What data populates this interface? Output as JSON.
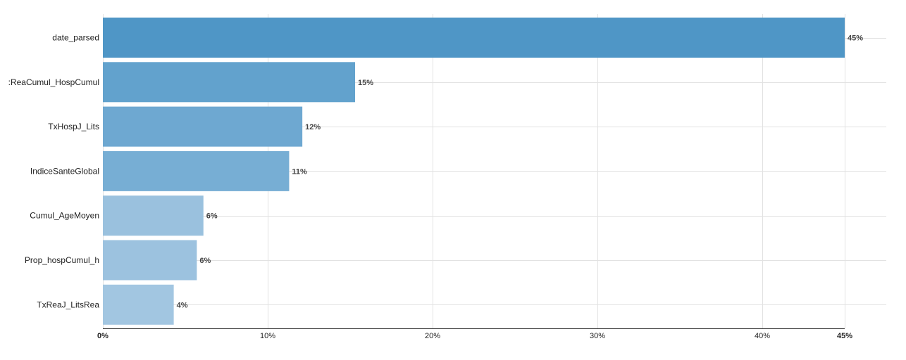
{
  "chart_data": {
    "type": "bar",
    "orientation": "horizontal",
    "categories": [
      "date_parsed",
      ":ReaCumul_HospCumul",
      "TxHospJ_Lits",
      "IndiceSanteGlobal",
      "Cumul_AgeMoyen",
      "Prop_hospCumul_h",
      "TxReaJ_LitsRea"
    ],
    "values": [
      45,
      15.3,
      12.1,
      11.3,
      6.1,
      5.7,
      4.3
    ],
    "value_labels": [
      "45%",
      "15%",
      "12%",
      "11%",
      "6%",
      "6%",
      "4%"
    ],
    "xlim": [
      0,
      45
    ],
    "x_ticks": [
      0,
      10,
      20,
      30,
      40,
      45
    ],
    "x_tick_labels": [
      "0%",
      "10%",
      "20%",
      "30%",
      "40%",
      "45%"
    ],
    "title": "",
    "xlabel": "",
    "ylabel": "",
    "grid": true,
    "colors": [
      "#4f96c6",
      "#62a2cd",
      "#6ea8d1",
      "#77aed4",
      "#9ac1de",
      "#9cc2df",
      "#a2c6e1"
    ]
  }
}
